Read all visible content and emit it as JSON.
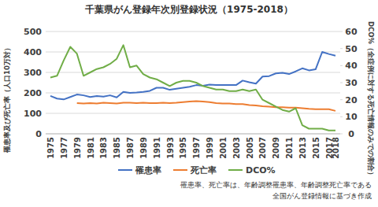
{
  "chart_data": {
    "type": "line",
    "title": "千葉県がん登録年次別登録状況（1975-2018）",
    "y_label": "罹患率及び死亡率（人口10万対）",
    "y2_label": "DCO%（全症例に対する死亡情報のみでの割合）",
    "annotations": [
      "罹患率、死亡率は、年齢調整罹患率、年齢調整死亡率である",
      "全国がん登録情報に基づき作成"
    ],
    "categories": [
      "1975",
      null,
      "1977",
      null,
      "1979",
      null,
      "1981",
      null,
      "1983",
      null,
      "1985",
      null,
      "1987",
      null,
      "1989",
      null,
      "1991",
      null,
      "1993",
      null,
      "1995",
      null,
      "1997",
      null,
      "1999",
      null,
      "2001",
      null,
      "2003",
      null,
      "2005",
      null,
      "2007",
      null,
      "2009",
      null,
      "2011",
      null,
      "2013",
      null,
      "2015",
      null,
      "2017",
      "2018"
    ],
    "series": [
      {
        "name": "罹患率",
        "color": "#4472c4",
        "values": [
          185,
          172,
          168,
          180,
          192,
          188,
          180,
          185,
          182,
          188,
          178,
          205,
          200,
          202,
          205,
          210,
          225,
          225,
          215,
          220,
          225,
          230,
          238,
          235,
          240,
          238,
          238,
          238,
          238,
          260,
          252,
          245,
          280,
          282,
          295,
          298,
          292,
          305,
          320,
          310,
          315,
          400,
          390,
          382
        ]
      },
      {
        "name": "死亡率",
        "color": "#ed7d31",
        "values": [
          null,
          null,
          null,
          null,
          150,
          148,
          150,
          148,
          152,
          150,
          148,
          152,
          152,
          150,
          152,
          150,
          150,
          152,
          150,
          152,
          155,
          158,
          160,
          158,
          155,
          150,
          148,
          148,
          145,
          145,
          140,
          138,
          135,
          133,
          130,
          130,
          128,
          128,
          125,
          122,
          120,
          120,
          120,
          112
        ]
      },
      {
        "name": "DCO%",
        "color": "#70ad47",
        "axis": "y2",
        "values": [
          33,
          34,
          43,
          51,
          47,
          34,
          36,
          38,
          39,
          41,
          44,
          52,
          39,
          40,
          35,
          33,
          32,
          30,
          28,
          30,
          31,
          31,
          30,
          28,
          27,
          26,
          26,
          25,
          25,
          26,
          25,
          26,
          20,
          18,
          16,
          14,
          13,
          15,
          5,
          3,
          3,
          3,
          2,
          2
        ]
      }
    ],
    "ylim": [
      0,
      500
    ],
    "yticks": [
      0,
      100,
      200,
      300,
      400,
      500
    ],
    "y2lim": [
      0,
      60
    ],
    "y2ticks": [
      0,
      10,
      20,
      30,
      40,
      50,
      60
    ],
    "grid": true,
    "legend": "bottom"
  }
}
